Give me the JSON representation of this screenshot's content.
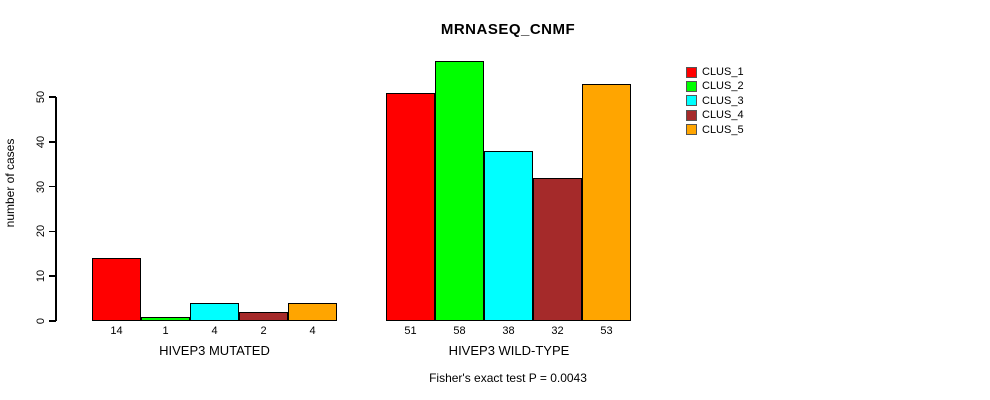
{
  "chart": {
    "title": "MRNASEQ_CNMF",
    "ylabel": "number of cases",
    "subtitle": "Fisher's exact test P = 0.0043"
  },
  "chart_data": {
    "type": "bar",
    "title": "MRNASEQ_CNMF",
    "xlabel": "",
    "ylabel": "number of cases",
    "categories": [
      "HIVEP3 MUTATED",
      "HIVEP3 WILD-TYPE"
    ],
    "series": [
      {
        "name": "CLUS_1",
        "color": "#ff0000",
        "values": [
          14,
          51
        ]
      },
      {
        "name": "CLUS_2",
        "color": "#00ff00",
        "values": [
          1,
          58
        ]
      },
      {
        "name": "CLUS_3",
        "color": "#00ffff",
        "values": [
          4,
          38
        ]
      },
      {
        "name": "CLUS_4",
        "color": "#a52a2a",
        "values": [
          2,
          32
        ]
      },
      {
        "name": "CLUS_5",
        "color": "#ffa500",
        "values": [
          4,
          53
        ]
      }
    ],
    "yticks": [
      0,
      10,
      20,
      30,
      40,
      50
    ],
    "ylim": [
      0,
      58
    ],
    "grid": false,
    "legend_position": "right",
    "legend_entries": [
      "CLUS_1",
      "CLUS_2",
      "CLUS_3",
      "CLUS_4",
      "CLUS_5"
    ],
    "annotation": "Fisher's exact test P = 0.0043"
  }
}
